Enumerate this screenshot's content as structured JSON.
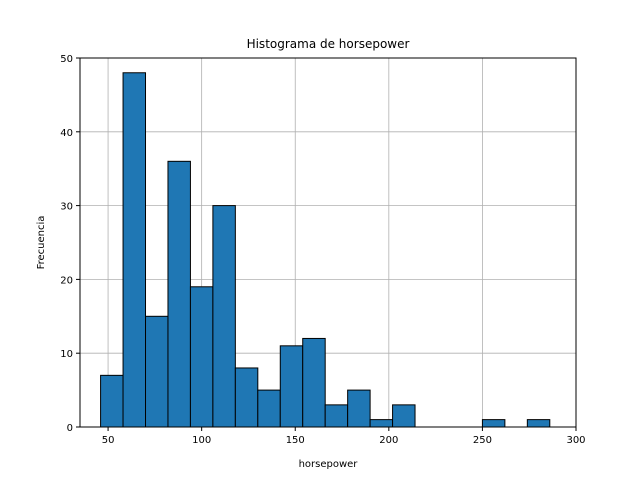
{
  "chart_data": {
    "type": "bar",
    "title": "Histograma de horsepower",
    "xlabel": "horsepower",
    "ylabel": "Frecuencia",
    "xlim": [
      35,
      300
    ],
    "ylim": [
      0,
      50
    ],
    "xticks": [
      50,
      100,
      150,
      200,
      250,
      300
    ],
    "yticks": [
      0,
      10,
      20,
      30,
      40,
      50
    ],
    "grid": true,
    "bar_color": "#1f77b4",
    "edge_color": "#000000",
    "bins": [
      {
        "x0": 46,
        "x1": 58,
        "count": 7
      },
      {
        "x0": 58,
        "x1": 70,
        "count": 48
      },
      {
        "x0": 70,
        "x1": 82,
        "count": 15
      },
      {
        "x0": 82,
        "x1": 94,
        "count": 36
      },
      {
        "x0": 94,
        "x1": 106,
        "count": 19
      },
      {
        "x0": 106,
        "x1": 118,
        "count": 30
      },
      {
        "x0": 118,
        "x1": 130,
        "count": 8
      },
      {
        "x0": 130,
        "x1": 142,
        "count": 5
      },
      {
        "x0": 142,
        "x1": 154,
        "count": 11
      },
      {
        "x0": 154,
        "x1": 166,
        "count": 12
      },
      {
        "x0": 166,
        "x1": 178,
        "count": 3
      },
      {
        "x0": 178,
        "x1": 190,
        "count": 5
      },
      {
        "x0": 190,
        "x1": 202,
        "count": 1
      },
      {
        "x0": 202,
        "x1": 214,
        "count": 3
      },
      {
        "x0": 214,
        "x1": 226,
        "count": 0
      },
      {
        "x0": 226,
        "x1": 238,
        "count": 0
      },
      {
        "x0": 238,
        "x1": 250,
        "count": 0
      },
      {
        "x0": 250,
        "x1": 262,
        "count": 1
      },
      {
        "x0": 262,
        "x1": 274,
        "count": 0
      },
      {
        "x0": 274,
        "x1": 286,
        "count": 1
      }
    ]
  }
}
